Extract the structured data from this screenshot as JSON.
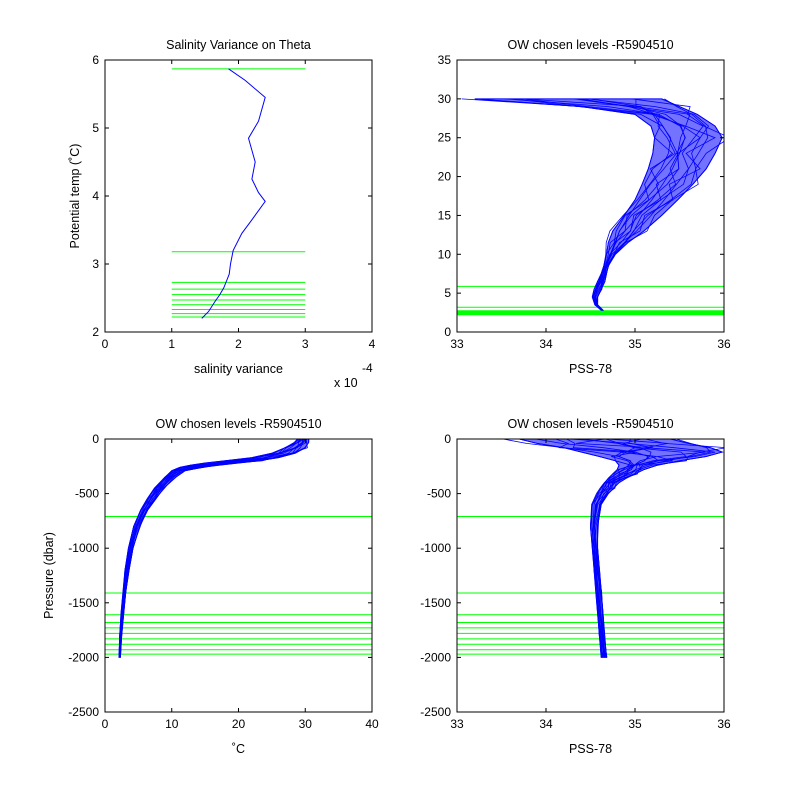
{
  "figure": {
    "background": "#ffffff"
  },
  "colors": {
    "profile": "#0000ff",
    "levels": "#00ff00",
    "axes": "#000000"
  },
  "chart_data": [
    {
      "id": "p1",
      "type": "line",
      "title": "Salinity Variance on Theta",
      "xlabel": "salinity variance",
      "ylabel": "Potential temp (˚C)",
      "x_exponent_label": "x 10",
      "x_exponent_power": "-4",
      "xlim": [
        0,
        4
      ],
      "ylim": [
        2,
        6
      ],
      "xticks": [
        0,
        1,
        2,
        3,
        4
      ],
      "xtick_labels": [
        "0",
        "1",
        "2",
        "3",
        "4"
      ],
      "yticks": [
        2,
        3,
        4,
        5,
        6
      ],
      "ytick_labels": [
        "2",
        "3",
        "4",
        "5",
        "6"
      ],
      "level_xrange": [
        1,
        3
      ],
      "levels": [
        5.87,
        3.18,
        2.73,
        2.63,
        2.55,
        2.47,
        2.4,
        2.33,
        2.27,
        2.22
      ],
      "series": [
        {
          "x": [
            1.45,
            1.55,
            1.65,
            1.72,
            1.78,
            1.82,
            1.86,
            1.88,
            1.92,
            2.05,
            2.2,
            2.4,
            2.3,
            2.2,
            2.25,
            2.15,
            2.3,
            2.4,
            2.1,
            1.85
          ],
          "y": [
            2.2,
            2.3,
            2.45,
            2.55,
            2.65,
            2.75,
            2.85,
            3.0,
            3.2,
            3.45,
            3.65,
            3.92,
            4.05,
            4.25,
            4.5,
            4.85,
            5.1,
            5.45,
            5.7,
            5.87
          ]
        }
      ]
    },
    {
      "id": "p2",
      "type": "line",
      "title": "OW chosen levels -R5904510",
      "xlabel": "PSS-78",
      "ylabel": "",
      "xlim": [
        33,
        36
      ],
      "ylim": [
        0,
        35
      ],
      "xticks": [
        33,
        34,
        35,
        36
      ],
      "xtick_labels": [
        "33",
        "34",
        "35",
        "36"
      ],
      "yticks": [
        0,
        5,
        10,
        15,
        20,
        25,
        30,
        35
      ],
      "ytick_labels": [
        "0",
        "5",
        "10",
        "15",
        "20",
        "25",
        "30",
        "35"
      ],
      "levels": [
        5.87,
        3.18,
        2.73,
        2.63,
        2.55,
        2.47,
        2.4,
        2.33,
        2.27,
        2.22
      ],
      "profile_band": {
        "y": [
          2.8,
          3.5,
          4.5,
          5.5,
          6.5,
          7.5,
          8.5,
          10.0,
          11.5,
          13.0,
          15.0,
          17.0,
          19.0,
          21.0,
          23.0,
          25.0,
          26.5,
          28.0,
          29.0,
          30.0
        ],
        "x_left": [
          34.62,
          34.55,
          34.52,
          34.54,
          34.58,
          34.62,
          34.65,
          34.68,
          34.7,
          34.75,
          34.88,
          35.0,
          35.08,
          35.15,
          35.2,
          35.22,
          35.18,
          35.0,
          34.4,
          33.2
        ],
        "x_right": [
          34.64,
          34.58,
          34.58,
          34.62,
          34.66,
          34.68,
          34.7,
          34.78,
          34.92,
          35.1,
          35.3,
          35.48,
          35.65,
          35.8,
          35.9,
          35.98,
          35.9,
          35.7,
          35.5,
          35.3
        ]
      }
    },
    {
      "id": "p3",
      "type": "line",
      "title": "OW chosen levels -R5904510",
      "xlabel": "˚C",
      "ylabel": "Pressure (dbar)",
      "xlim": [
        0,
        40
      ],
      "ylim": [
        -2500,
        0
      ],
      "xticks": [
        0,
        10,
        20,
        30,
        40
      ],
      "xtick_labels": [
        "0",
        "10",
        "20",
        "30",
        "40"
      ],
      "yticks": [
        -2500,
        -2000,
        -1500,
        -1000,
        -500,
        0
      ],
      "ytick_labels": [
        "-2500",
        "-2000",
        "-1500",
        "-1000",
        "-500",
        "0"
      ],
      "levels": [
        -710,
        -1410,
        -1610,
        -1680,
        -1730,
        -1780,
        -1830,
        -1880,
        -1930,
        -1970
      ],
      "profile_band": {
        "y": [
          -2000,
          -1800,
          -1600,
          -1400,
          -1200,
          -1000,
          -800,
          -650,
          -550,
          -450,
          -350,
          -290,
          -260,
          -240,
          -220,
          -200,
          -170,
          -130,
          -80,
          -30,
          0
        ],
        "x_left": [
          2.1,
          2.2,
          2.4,
          2.7,
          3.0,
          3.5,
          4.3,
          5.4,
          6.4,
          7.5,
          9.0,
          10.0,
          11.2,
          12.8,
          15.0,
          18.0,
          22.0,
          25.0,
          27.0,
          28.5,
          29.0
        ],
        "x_right": [
          2.3,
          2.5,
          2.8,
          3.1,
          3.6,
          4.2,
          5.2,
          6.4,
          7.6,
          8.8,
          10.6,
          12.0,
          14.5,
          17.0,
          20.0,
          23.0,
          26.0,
          28.5,
          30.0,
          30.5,
          30.5
        ]
      }
    },
    {
      "id": "p4",
      "type": "line",
      "title": "OW chosen levels -R5904510",
      "xlabel": "PSS-78",
      "ylabel": "",
      "xlim": [
        33,
        36
      ],
      "ylim": [
        -2500,
        0
      ],
      "xticks": [
        33,
        34,
        35,
        36
      ],
      "xtick_labels": [
        "33",
        "34",
        "35",
        "36"
      ],
      "yticks": [
        -2500,
        -2000,
        -1500,
        -1000,
        -500,
        0
      ],
      "ytick_labels": [
        "-2500",
        "-2000",
        "-1500",
        "-1000",
        "-500",
        "0"
      ],
      "levels": [
        -710,
        -1410,
        -1610,
        -1680,
        -1730,
        -1780,
        -1830,
        -1880,
        -1930,
        -1970
      ],
      "profile_band": {
        "y": [
          -2000,
          -1800,
          -1600,
          -1400,
          -1200,
          -1000,
          -800,
          -600,
          -500,
          -450,
          -400,
          -360,
          -320,
          -280,
          -240,
          -200,
          -160,
          -120,
          -80,
          -40,
          0
        ],
        "x_left": [
          34.62,
          34.6,
          34.58,
          34.56,
          34.54,
          34.52,
          34.5,
          34.52,
          34.58,
          34.62,
          34.66,
          34.7,
          34.75,
          34.8,
          34.82,
          34.78,
          34.6,
          34.4,
          34.2,
          33.9,
          33.7
        ],
        "x_right": [
          34.68,
          34.66,
          34.64,
          34.62,
          34.6,
          34.58,
          34.58,
          34.62,
          34.7,
          34.76,
          34.82,
          34.9,
          35.0,
          35.1,
          35.25,
          35.5,
          35.8,
          35.98,
          35.85,
          35.6,
          35.4
        ]
      }
    }
  ]
}
